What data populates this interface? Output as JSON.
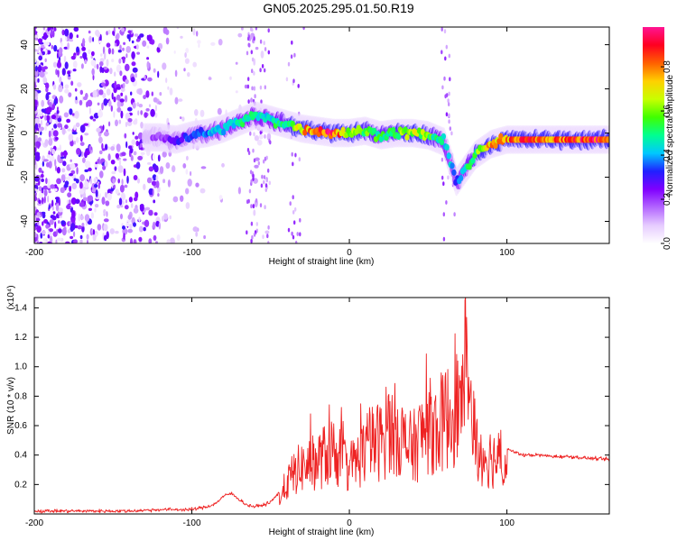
{
  "title": "GN05.2025.295.01.50.R19",
  "chart_data": [
    {
      "type": "heatmap",
      "title": "",
      "xlabel": "Height of straight line (km)",
      "ylabel": "Frequency (Hz)",
      "xlim": [
        -200,
        165
      ],
      "ylim": [
        -50,
        48
      ],
      "xticks": [
        -200,
        -100,
        0,
        100
      ],
      "yticks": [
        -40,
        -20,
        0,
        20,
        40
      ],
      "colorbar": {
        "label": "Normalized spectral amplitude",
        "range": [
          0,
          0.98
        ],
        "ticks": [
          "0.0",
          "0.2",
          "0.4",
          "0.6",
          "0.8"
        ],
        "colormap": [
          "#ffffff",
          "#e6ccff",
          "#b366ff",
          "#8000ff",
          "#2020ff",
          "#00c8ff",
          "#00ff90",
          "#40ff00",
          "#c8ff00",
          "#ffd000",
          "#ff6000",
          "#ff0020",
          "#ff1493"
        ]
      },
      "ridge": {
        "x": [
          -120,
          -110,
          -100,
          -90,
          -80,
          -70,
          -60,
          -50,
          -40,
          -30,
          -20,
          -10,
          0,
          10,
          20,
          30,
          40,
          50,
          60,
          65,
          68,
          72,
          80,
          90,
          100,
          120,
          140,
          165
        ],
        "freq": [
          -2,
          -3,
          -1,
          0,
          2,
          5,
          8,
          6,
          4,
          2,
          1,
          0,
          0,
          1,
          -1,
          0,
          0,
          -1,
          -4,
          -15,
          -22,
          -18,
          -10,
          -5,
          -3,
          -3,
          -3,
          -3
        ],
        "amplitude": [
          0.2,
          0.3,
          0.35,
          0.4,
          0.45,
          0.5,
          0.5,
          0.5,
          0.55,
          0.75,
          0.9,
          0.95,
          0.7,
          0.6,
          0.55,
          0.6,
          0.7,
          0.6,
          0.5,
          0.4,
          0.4,
          0.45,
          0.6,
          0.8,
          0.85,
          0.9,
          0.9,
          0.95
        ]
      }
    },
    {
      "type": "line",
      "title": "",
      "xlabel": "Height of straight line (km)",
      "ylabel": "SNR (10 * v/v)",
      "y_multiplier": "(x10⁴)",
      "xlim": [
        -200,
        165
      ],
      "ylim": [
        0,
        1.47
      ],
      "xticks": [
        -200,
        -100,
        0,
        100
      ],
      "yticks": [
        0.2,
        0.4,
        0.6,
        0.8,
        1.0,
        1.2,
        1.4
      ],
      "color": "#ee2222",
      "series": [
        {
          "x": [
            -200,
            -180,
            -160,
            -140,
            -120,
            -100,
            -95,
            -90,
            -85,
            -80,
            -75,
            -70,
            -65,
            -60,
            -55,
            -50,
            -45,
            -40,
            -35,
            -30,
            -25,
            -20,
            -15,
            -10,
            -5,
            0,
            5,
            10,
            15,
            20,
            25,
            30,
            35,
            40,
            45,
            50,
            55,
            60,
            65,
            70,
            72,
            74,
            76,
            78,
            80,
            85,
            90,
            95,
            100,
            110,
            120,
            130,
            140,
            150,
            165
          ],
          "y": [
            0.02,
            0.02,
            0.02,
            0.02,
            0.03,
            0.03,
            0.04,
            0.05,
            0.07,
            0.12,
            0.14,
            0.1,
            0.06,
            0.05,
            0.06,
            0.08,
            0.14,
            0.25,
            0.35,
            0.4,
            0.42,
            0.45,
            0.5,
            0.55,
            0.45,
            0.4,
            0.45,
            0.55,
            0.6,
            0.62,
            0.7,
            0.72,
            0.6,
            0.55,
            0.65,
            0.75,
            0.72,
            0.8,
            0.85,
            0.95,
            1.1,
            1.47,
            1.2,
            0.9,
            0.6,
            0.5,
            0.48,
            0.46,
            0.44,
            0.4,
            0.4,
            0.39,
            0.39,
            0.38,
            0.37
          ]
        }
      ]
    }
  ]
}
